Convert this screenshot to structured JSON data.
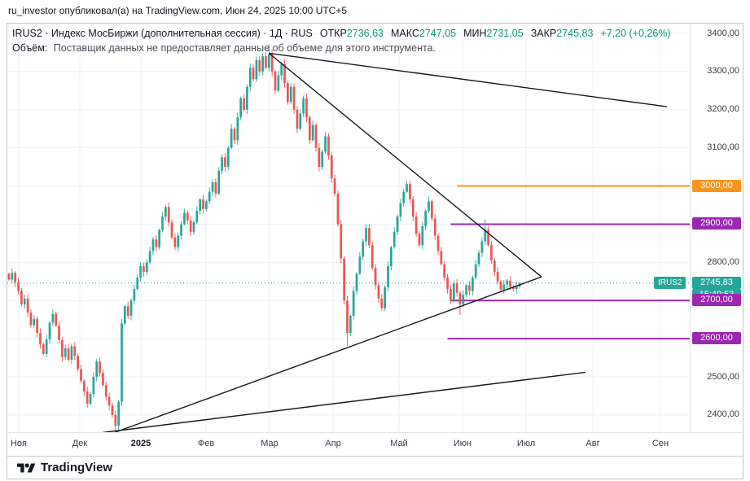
{
  "attribution": "ru_investor опубликовал(а) на TradingView.com, Июн 24, 2025 10:00 UTC+5",
  "legend": {
    "title": "IRUS2 · Индекс МосБиржи (дополнительная сессия) · 1Д · RUS",
    "ohlc": [
      {
        "label": "ОТКР",
        "value": "2736,63"
      },
      {
        "label": "МАКС",
        "value": "2747,05"
      },
      {
        "label": "МИН",
        "value": "2731,05"
      },
      {
        "label": "ЗАКР",
        "value": "2745,83"
      }
    ],
    "change": "+7,20 (+0,26%)",
    "volume_label": "Объём:",
    "volume_message": "Поставщик данных не предоставляет данные об объеме для этого инструмента."
  },
  "price_axis": {
    "ticks": [
      {
        "price": 3400,
        "label": "3400,00"
      },
      {
        "price": 3300,
        "label": "3300,00"
      },
      {
        "price": 3200,
        "label": "3200,00"
      },
      {
        "price": 3100,
        "label": "3100,00"
      },
      {
        "price": 3000,
        "label": "3000,00"
      },
      {
        "price": 2900,
        "label": "2900,00"
      },
      {
        "price": 2800,
        "label": "2800,00"
      },
      {
        "price": 2700,
        "label": "2700,00"
      },
      {
        "price": 2600,
        "label": "2600,00"
      },
      {
        "price": 2500,
        "label": "2500,00"
      },
      {
        "price": 2400,
        "label": "2400,00"
      }
    ]
  },
  "time_axis": {
    "labels": [
      "Ноя",
      "Дек",
      "2025",
      "Фев",
      "Мар",
      "Апр",
      "Май",
      "Июн",
      "Июл",
      "Авг",
      "Сен"
    ]
  },
  "last_price": {
    "symbol": "IRUS2",
    "label": "2745,83",
    "countdown": "15:49:53",
    "value": 2745.83,
    "color": "#26a69a"
  },
  "footer": {
    "brand": "TradingView"
  },
  "colors": {
    "up": "#26a69a",
    "down": "#ef5350",
    "trendline": "#16181e",
    "grid": "#eef1f8",
    "orange": "#f7941e",
    "purple": "#9c27b0"
  },
  "chart_data": {
    "type": "candlestick",
    "symbol": "IRUS2",
    "name": "Индекс МосБиржи (дополнительная сессия)",
    "interval": "1Д",
    "exchange": "RUS",
    "last": {
      "open": 2736.63,
      "high": 2747.05,
      "low": 2731.05,
      "close": 2745.83,
      "change_abs": 7.2,
      "change_pct": 0.26
    },
    "ylim": [
      2355,
      3426
    ],
    "x_months": [
      "Ноя",
      "Дек",
      "2025",
      "Фев",
      "Мар",
      "Апр",
      "Май",
      "Июн",
      "Июл",
      "Авг",
      "Сен"
    ],
    "first_open": 2770,
    "closes": [
      2755,
      2772,
      2748,
      2725,
      2690,
      2705,
      2668,
      2635,
      2652,
      2615,
      2585,
      2560,
      2598,
      2642,
      2665,
      2634,
      2596,
      2552,
      2575,
      2545,
      2580,
      2555,
      2520,
      2490,
      2462,
      2430,
      2455,
      2500,
      2540,
      2510,
      2478,
      2448,
      2425,
      2400,
      2372,
      2435,
      2640,
      2685,
      2660,
      2700,
      2730,
      2760,
      2790,
      2775,
      2800,
      2830,
      2860,
      2840,
      2885,
      2920,
      2945,
      2905,
      2865,
      2840,
      2870,
      2900,
      2930,
      2910,
      2880,
      2905,
      2935,
      2965,
      2940,
      2960,
      2985,
      3010,
      2980,
      3040,
      3075,
      3050,
      3100,
      3150,
      3120,
      3180,
      3230,
      3200,
      3260,
      3310,
      3280,
      3330,
      3300,
      3340,
      3310,
      3345,
      3300,
      3250,
      3290,
      3320,
      3270,
      3220,
      3260,
      3200,
      3150,
      3190,
      3230,
      3180,
      3120,
      3160,
      3100,
      3050,
      3090,
      3130,
      3080,
      3020,
      2980,
      2900,
      2810,
      2700,
      2615,
      2660,
      2725,
      2770,
      2815,
      2855,
      2890,
      2845,
      2785,
      2740,
      2705,
      2680,
      2735,
      2790,
      2840,
      2880,
      2920,
      2955,
      2985,
      3005,
      2965,
      2920,
      2875,
      2845,
      2895,
      2935,
      2960,
      2915,
      2870,
      2830,
      2795,
      2760,
      2730,
      2700,
      2745,
      2720,
      2690,
      2715,
      2740,
      2725,
      2760,
      2795,
      2825,
      2855,
      2885,
      2845,
      2805,
      2775,
      2750,
      2728,
      2742,
      2752,
      2735,
      2730,
      2739,
      2745.83
    ],
    "wick_overrides": {
      "34": {
        "low": 2358
      },
      "83": {
        "high": 3372
      },
      "108": {
        "low": 2582
      },
      "144": {
        "low": 2662
      },
      "152": {
        "high": 2912
      }
    },
    "levels": [
      {
        "price": 3000,
        "label": "3000,00",
        "color": "#f7941e",
        "from_index": 143
      },
      {
        "price": 2900,
        "label": "2900,00",
        "color": "#9c27b0",
        "from_index": 141
      },
      {
        "price": 2700,
        "label": "2700,00",
        "color": "#9c27b0",
        "from_index": 141
      },
      {
        "price": 2600,
        "label": "2600,00",
        "color": "#9c27b0",
        "from_index": 140
      }
    ],
    "trendlines": [
      {
        "name": "descending-long",
        "from": {
          "index": 83,
          "price": 3348
        },
        "to": {
          "index": 210,
          "price": 3208
        }
      },
      {
        "name": "descending-steep",
        "from": {
          "index": 83,
          "price": 3348
        },
        "to": {
          "index": 170,
          "price": 2762
        }
      },
      {
        "name": "ascending-main",
        "from": {
          "index": 34,
          "price": 2355
        },
        "to": {
          "index": 170,
          "price": 2762
        }
      },
      {
        "name": "ascending-lower",
        "from": {
          "index": 28,
          "price": 2352
        },
        "to": {
          "index": 184,
          "price": 2512
        }
      }
    ],
    "current_price_line": {
      "price": 2745.83,
      "style": "dotted",
      "color": "#26a69a"
    }
  }
}
